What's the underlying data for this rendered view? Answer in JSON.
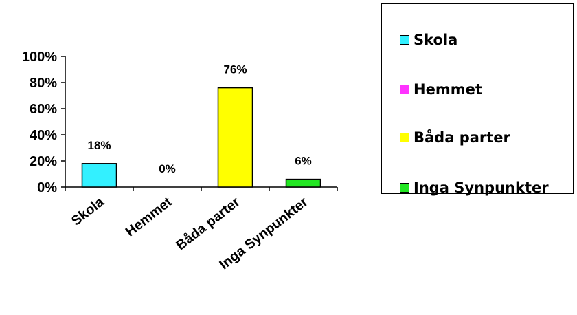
{
  "chart_data": {
    "type": "bar",
    "categories": [
      "Skola",
      "Hemmet",
      "Båda parter",
      "Inga Synpunkter"
    ],
    "values": [
      18,
      0,
      76,
      6
    ],
    "data_labels": [
      "18%",
      "0%",
      "76%",
      "6%"
    ],
    "colors": [
      "#33f0ff",
      "#ff33ff",
      "#ffff00",
      "#22e622"
    ],
    "yticks": [
      "0%",
      "20%",
      "40%",
      "60%",
      "80%",
      "100%"
    ],
    "ylim": [
      0,
      100
    ],
    "legend": {
      "position": "right",
      "entries": [
        "Skola",
        "Hemmet",
        "Båda parter",
        "Inga Synpunkter"
      ]
    }
  }
}
